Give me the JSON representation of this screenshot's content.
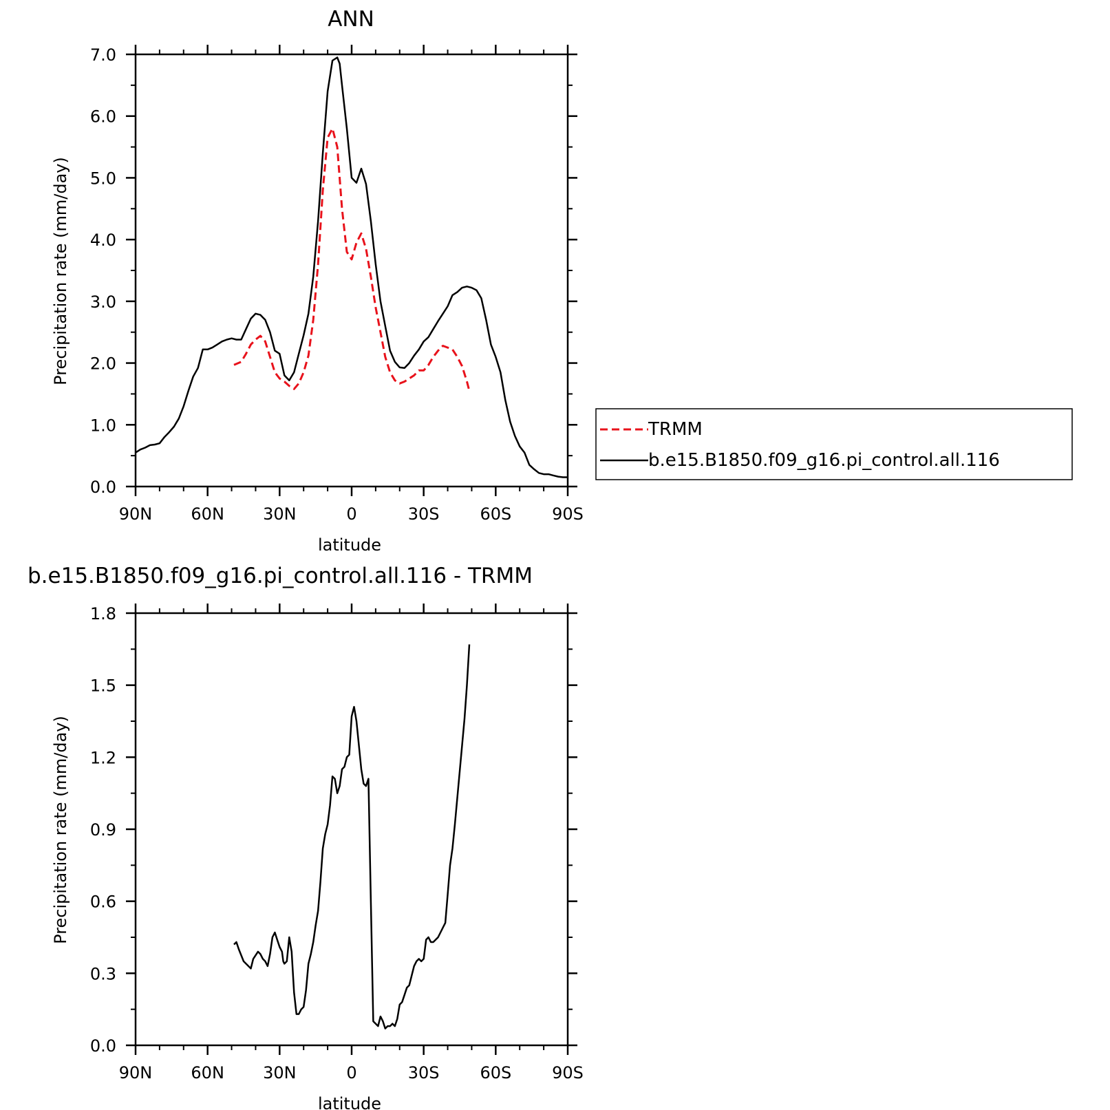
{
  "colors": {
    "trmm": "#e8121b",
    "model": "#000000",
    "axis": "#000000"
  },
  "chart_data": [
    {
      "type": "line",
      "title": "ANN",
      "xlabel": "latitude",
      "ylabel": "Precipitation rate (mm/day)",
      "xlim": [
        90,
        -90
      ],
      "ylim": [
        0,
        7
      ],
      "xtick_values": [
        90,
        60,
        30,
        0,
        -30,
        -60,
        -90
      ],
      "xtick_labels": [
        "90N",
        "60N",
        "30N",
        "0",
        "30S",
        "60S",
        "90S"
      ],
      "ytick_values": [
        0,
        1,
        2,
        3,
        4,
        5,
        6,
        7
      ],
      "ytick_labels": [
        "0.0",
        "1.0",
        "2.0",
        "3.0",
        "4.0",
        "5.0",
        "6.0",
        "7.0"
      ],
      "legend_position": "right",
      "series": [
        {
          "name": "TRMM",
          "style": "dashed",
          "x": [
            49,
            46,
            44,
            42,
            40,
            38,
            36,
            34,
            32,
            30,
            28,
            26,
            24,
            22,
            20,
            18,
            16,
            14,
            12,
            10,
            8,
            6,
            4,
            2,
            0,
            -2,
            -4,
            -6,
            -8,
            -10,
            -12,
            -14,
            -16,
            -18,
            -20,
            -22,
            -24,
            -26,
            -28,
            -30,
            -32,
            -34,
            -36,
            -38,
            -40,
            -42,
            -44,
            -46,
            -48,
            -49
          ],
          "values": [
            1.97,
            2.02,
            2.15,
            2.3,
            2.38,
            2.44,
            2.35,
            2.1,
            1.85,
            1.75,
            1.7,
            1.63,
            1.58,
            1.67,
            1.85,
            2.12,
            2.7,
            3.6,
            4.8,
            5.65,
            5.8,
            5.5,
            4.5,
            3.8,
            3.68,
            3.95,
            4.1,
            3.85,
            3.4,
            2.9,
            2.5,
            2.1,
            1.85,
            1.72,
            1.67,
            1.7,
            1.75,
            1.8,
            1.88,
            1.88,
            1.97,
            2.1,
            2.2,
            2.28,
            2.25,
            2.22,
            2.1,
            1.95,
            1.7,
            1.55
          ]
        },
        {
          "name": "b.e15.B1850.f09_g16.pi_control.all.116",
          "style": "solid",
          "x": [
            90,
            88,
            86,
            84,
            82,
            80,
            78,
            76,
            74,
            72,
            70,
            68,
            66,
            64,
            62,
            60,
            58,
            56,
            54,
            52,
            50,
            48,
            46,
            44,
            42,
            40,
            38,
            36,
            34,
            32,
            30,
            28,
            26,
            24,
            22,
            20,
            18,
            16,
            14,
            12,
            10,
            8,
            6,
            5,
            4,
            2,
            0,
            -2,
            -4,
            -6,
            -8,
            -10,
            -12,
            -14,
            -16,
            -18,
            -20,
            -22,
            -24,
            -26,
            -28,
            -30,
            -32,
            -34,
            -36,
            -38,
            -40,
            -42,
            -44,
            -46,
            -48,
            -50,
            -52,
            -54,
            -56,
            -58,
            -60,
            -62,
            -64,
            -66,
            -68,
            -70,
            -72,
            -74,
            -76,
            -78,
            -80,
            -82,
            -84,
            -86,
            -88,
            -90
          ],
          "values": [
            0.55,
            0.6,
            0.63,
            0.67,
            0.68,
            0.7,
            0.8,
            0.88,
            0.97,
            1.1,
            1.3,
            1.55,
            1.78,
            1.92,
            2.22,
            2.22,
            2.25,
            2.3,
            2.35,
            2.38,
            2.4,
            2.38,
            2.38,
            2.55,
            2.72,
            2.8,
            2.78,
            2.7,
            2.5,
            2.2,
            2.15,
            1.8,
            1.72,
            1.85,
            2.15,
            2.45,
            2.8,
            3.4,
            4.3,
            5.4,
            6.4,
            6.9,
            6.95,
            6.85,
            6.5,
            5.8,
            5.0,
            4.92,
            5.15,
            4.9,
            4.3,
            3.6,
            3.0,
            2.6,
            2.2,
            2.02,
            1.93,
            1.92,
            2.0,
            2.12,
            2.22,
            2.35,
            2.42,
            2.55,
            2.68,
            2.8,
            2.92,
            3.1,
            3.15,
            3.22,
            3.24,
            3.22,
            3.18,
            3.05,
            2.7,
            2.3,
            2.1,
            1.85,
            1.4,
            1.05,
            0.82,
            0.65,
            0.55,
            0.35,
            0.28,
            0.22,
            0.2,
            0.2,
            0.18,
            0.16,
            0.15,
            0.15
          ]
        }
      ]
    },
    {
      "type": "line",
      "title": "b.e15.B1850.f09_g16.pi_control.all.116 - TRMM",
      "xlabel": "latitude",
      "ylabel": "Precipitation rate (mm/day)",
      "xlim": [
        90,
        -90
      ],
      "ylim": [
        0,
        1.8
      ],
      "xtick_values": [
        90,
        60,
        30,
        0,
        -30,
        -60,
        -90
      ],
      "xtick_labels": [
        "90N",
        "60N",
        "30N",
        "0",
        "30S",
        "60S",
        "90S"
      ],
      "ytick_values": [
        0,
        0.3,
        0.6,
        0.9,
        1.2,
        1.5,
        1.8
      ],
      "ytick_labels": [
        "0.0",
        "0.3",
        "0.6",
        "0.9",
        "1.2",
        "1.5",
        "1.8"
      ],
      "series": [
        {
          "style": "solid",
          "x": [
            49,
            48,
            47,
            45,
            43,
            42,
            41,
            39,
            38,
            37,
            36,
            35,
            34,
            33,
            32,
            31,
            30,
            29,
            28.5,
            28,
            27,
            26,
            25,
            24,
            23,
            22,
            21,
            20,
            19,
            18,
            17,
            16,
            15,
            14,
            13,
            12,
            11,
            10,
            9,
            8,
            7,
            6,
            5,
            4,
            3,
            2,
            1,
            0,
            -1,
            -2,
            -3,
            -4,
            -5,
            -6,
            -7,
            -8,
            -9,
            -10,
            -11,
            -12,
            -13,
            -14,
            -15,
            -16,
            -17,
            -18,
            -19,
            -20,
            -21,
            -22,
            -23,
            -24,
            -25,
            -26,
            -27,
            -28,
            -29,
            -30,
            -31,
            -32,
            -33,
            -34,
            -35,
            -36,
            -37,
            -38,
            -39,
            -40,
            -41,
            -42,
            -43,
            -44,
            -45,
            -46,
            -47,
            -48,
            -49
          ],
          "values": [
            0.42,
            0.43,
            0.4,
            0.35,
            0.33,
            0.32,
            0.36,
            0.39,
            0.38,
            0.36,
            0.35,
            0.33,
            0.38,
            0.45,
            0.47,
            0.44,
            0.41,
            0.39,
            0.35,
            0.34,
            0.35,
            0.45,
            0.39,
            0.22,
            0.13,
            0.13,
            0.15,
            0.16,
            0.23,
            0.34,
            0.38,
            0.43,
            0.5,
            0.56,
            0.68,
            0.82,
            0.88,
            0.92,
            1.0,
            1.12,
            1.11,
            1.05,
            1.08,
            1.15,
            1.16,
            1.2,
            1.21,
            1.37,
            1.41,
            1.35,
            1.25,
            1.15,
            1.09,
            1.08,
            1.11,
            0.6,
            0.1,
            0.09,
            0.08,
            0.12,
            0.1,
            0.07,
            0.08,
            0.08,
            0.09,
            0.08,
            0.11,
            0.17,
            0.18,
            0.21,
            0.24,
            0.25,
            0.29,
            0.33,
            0.35,
            0.36,
            0.35,
            0.36,
            0.44,
            0.45,
            0.43,
            0.43,
            0.44,
            0.45,
            0.47,
            0.49,
            0.51,
            0.63,
            0.75,
            0.82,
            0.92,
            1.03,
            1.14,
            1.25,
            1.36,
            1.5,
            1.67
          ]
        }
      ]
    }
  ]
}
